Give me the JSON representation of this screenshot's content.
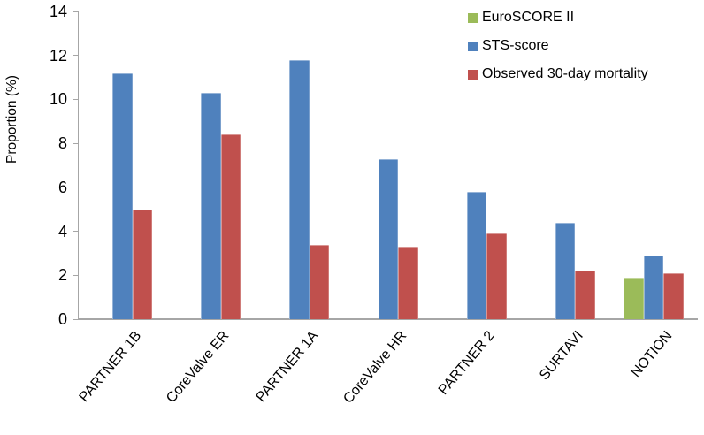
{
  "chart_data": {
    "type": "bar",
    "ylabel": "Proportion (%)",
    "ylim": [
      0,
      14
    ],
    "yticks": [
      0,
      2,
      4,
      6,
      8,
      10,
      12,
      14
    ],
    "grid": false,
    "legend_position": "top-right",
    "categories": [
      "PARTNER 1B",
      "CoreValve ER",
      "PARTNER 1A",
      "CoreValve HR",
      "PARTNER 2",
      "SURTAVI",
      "NOTION"
    ],
    "series": [
      {
        "name": "EuroSCORE II",
        "color": "#9BBB59",
        "values": [
          null,
          null,
          null,
          null,
          null,
          null,
          1.9
        ]
      },
      {
        "name": "STS-score",
        "color": "#4F81BD",
        "values": [
          11.2,
          10.3,
          11.8,
          7.3,
          5.8,
          4.4,
          2.9
        ]
      },
      {
        "name": "Observed 30-day mortality",
        "color": "#C0504D",
        "values": [
          5.0,
          8.4,
          3.4,
          3.3,
          3.9,
          2.2,
          2.1
        ]
      }
    ],
    "axis_color": "#A6A6A6",
    "text_color": "#000000",
    "background_color": "#FFFFFF"
  }
}
